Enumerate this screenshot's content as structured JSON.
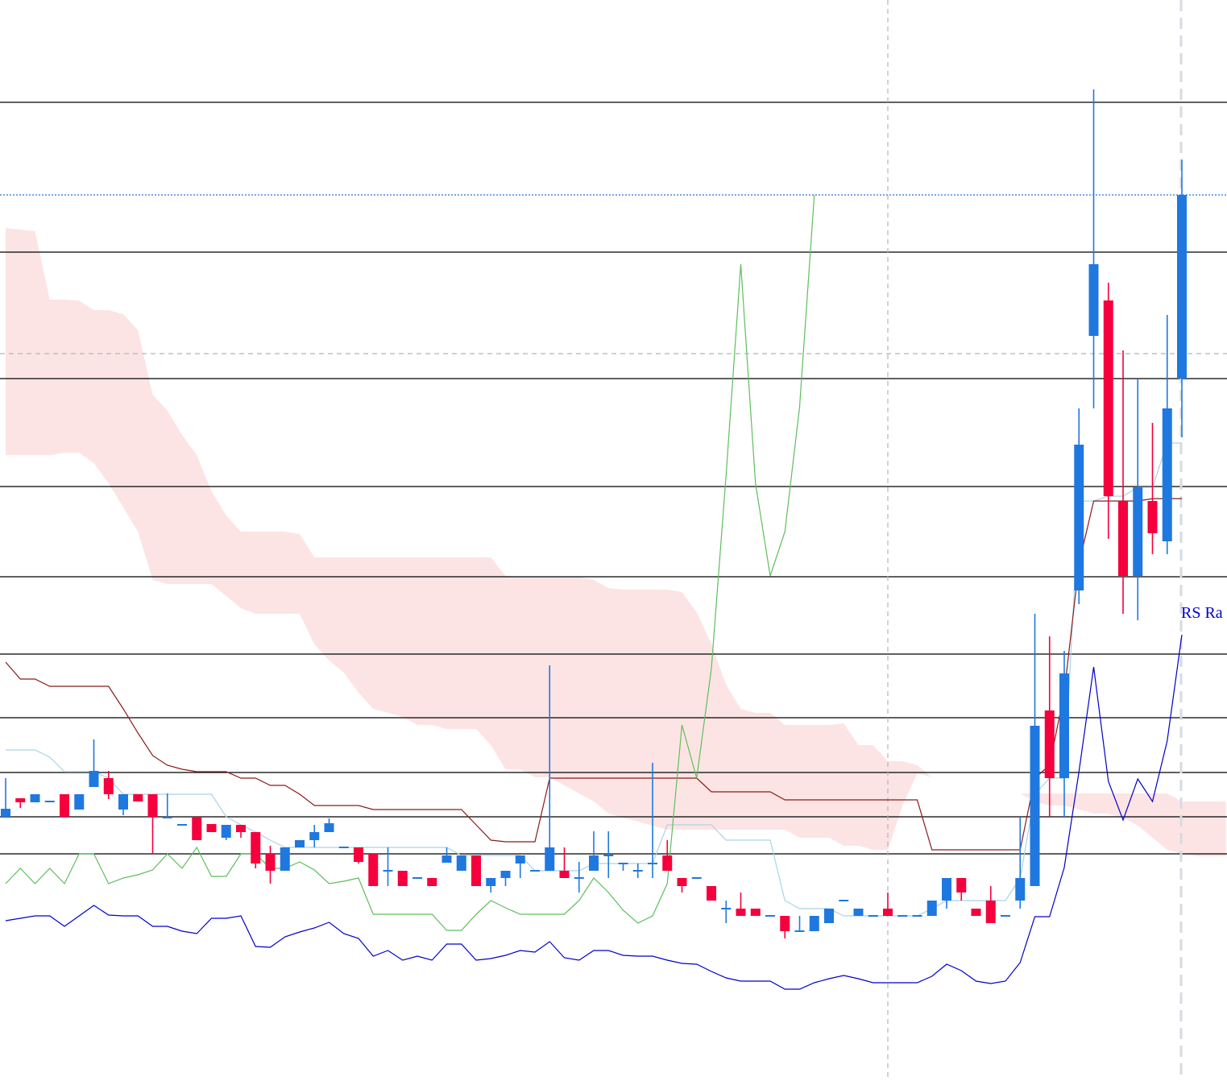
{
  "chart_data": {
    "type": "candlestick",
    "ylim": [
      0,
      1342
    ],
    "up_color": "#1f78e0",
    "down_color": "#f5003c",
    "categories": [
      null,
      null,
      null,
      null,
      null,
      null,
      null,
      null,
      null,
      null,
      null,
      null,
      null,
      null,
      null,
      null,
      null,
      null,
      null,
      null,
      null,
      null,
      null,
      null,
      null,
      null,
      null,
      null,
      null,
      null,
      null,
      null,
      null,
      null,
      null,
      null,
      null,
      null,
      null,
      null,
      null,
      null,
      null,
      null,
      null,
      null,
      null,
      null,
      null,
      null,
      null,
      null,
      null,
      null,
      null,
      null,
      null,
      null,
      null,
      null,
      null,
      null,
      null,
      null,
      null,
      null,
      null,
      null,
      null,
      null,
      null,
      null,
      null,
      null,
      null,
      null,
      null,
      null,
      null,
      null,
      null,
      null,
      null,
      null
    ],
    "open": [
      328,
      351,
      346,
      346,
      356,
      337,
      365,
      376,
      337,
      356,
      356,
      326,
      317,
      328,
      319,
      302,
      318,
      309,
      282,
      261,
      290,
      299,
      309,
      289,
      290,
      282,
      260,
      261,
      251,
      252,
      271,
      261,
      280,
      242,
      252,
      270,
      260,
      261,
      261,
      251,
      261,
      279,
      269,
      260,
      269,
      280,
      252,
      251,
      242,
      213,
      214,
      214,
      204,
      205,
      185,
      186,
      196,
      223,
      205,
      204,
      214,
      204,
      204,
      205,
      224,
      252,
      214,
      224,
      204,
      224,
      242,
      460,
      376,
      609,
      925,
      969,
      720,
      627,
      720,
      670,
      872,
      null,
      null,
      null
    ],
    "high": [
      376,
      351,
      356,
      348,
      356,
      356,
      424,
      385,
      356,
      356,
      356,
      357,
      319,
      328,
      319,
      318,
      318,
      309,
      292,
      290,
      299,
      318,
      326,
      291,
      290,
      282,
      290,
      261,
      253,
      252,
      290,
      280,
      280,
      252,
      261,
      280,
      262,
      516,
      290,
      272,
      310,
      310,
      271,
      270,
      395,
      299,
      252,
      253,
      242,
      224,
      234,
      214,
      206,
      205,
      205,
      205,
      214,
      225,
      214,
      206,
      234,
      206,
      206,
      224,
      252,
      252,
      214,
      242,
      206,
      328,
      580,
      552,
      534,
      835,
      1231,
      991,
      907,
      872,
      817,
      951,
      1144,
      null,
      null,
      null
    ],
    "low": [
      328,
      339,
      346,
      346,
      328,
      337,
      365,
      350,
      330,
      347,
      282,
      326,
      317,
      299,
      309,
      299,
      302,
      264,
      245,
      261,
      290,
      290,
      309,
      289,
      270,
      242,
      242,
      242,
      251,
      242,
      271,
      261,
      242,
      234,
      242,
      252,
      260,
      261,
      252,
      234,
      261,
      252,
      261,
      252,
      252,
      261,
      234,
      251,
      224,
      196,
      205,
      205,
      204,
      177,
      185,
      186,
      196,
      223,
      205,
      204,
      205,
      204,
      204,
      205,
      214,
      224,
      205,
      196,
      204,
      214,
      242,
      328,
      328,
      592,
      835,
      673,
      580,
      572,
      654,
      654,
      799,
      null,
      null,
      null
    ],
    "close": [
      338,
      346,
      356,
      348,
      328,
      356,
      385,
      356,
      356,
      347,
      328,
      328,
      319,
      299,
      309,
      318,
      309,
      270,
      261,
      290,
      299,
      309,
      320,
      291,
      272,
      242,
      262,
      242,
      253,
      242,
      280,
      280,
      242,
      252,
      261,
      280,
      262,
      290,
      252,
      253,
      280,
      281,
      271,
      262,
      271,
      261,
      242,
      253,
      224,
      215,
      205,
      205,
      206,
      186,
      187,
      205,
      214,
      225,
      214,
      206,
      205,
      206,
      206,
      224,
      252,
      234,
      205,
      196,
      206,
      252,
      441,
      376,
      506,
      790,
      1014,
      726,
      627,
      737,
      680,
      835,
      1100,
      null,
      null,
      null
    ],
    "cloud": {
      "color": "#fde4e4",
      "upper": [
        1059,
        1057,
        1055,
        970,
        970,
        969,
        957,
        957,
        952,
        932,
        852,
        832,
        802,
        777,
        732,
        702,
        682,
        682,
        682,
        682,
        679,
        650,
        650,
        650,
        650,
        650,
        650,
        650,
        650,
        650,
        650,
        650,
        650,
        650,
        627,
        626,
        626,
        626,
        626,
        626,
        622,
        612,
        610,
        610,
        610,
        610,
        607,
        582,
        542,
        492,
        462,
        457,
        457,
        442,
        442,
        442,
        442,
        444,
        417,
        417,
        397,
        397,
        392,
        377,
        null,
        null,
        null,
        null,
        null,
        357,
        357,
        357,
        357,
        357,
        357,
        357,
        357,
        357,
        357,
        357,
        347,
        347,
        347,
        347
      ],
      "lower": [
        777,
        777,
        777,
        777,
        780,
        780,
        767,
        742,
        712,
        682,
        622,
        617,
        617,
        617,
        617,
        602,
        587,
        580,
        580,
        580,
        580,
        542,
        522,
        507,
        482,
        462,
        457,
        452,
        442,
        442,
        437,
        437,
        437,
        417,
        387,
        387,
        377,
        377,
        367,
        357,
        347,
        332,
        327,
        322,
        317,
        312,
        312,
        312,
        312,
        312,
        312,
        312,
        312,
        312,
        302,
        302,
        302,
        292,
        292,
        287,
        287,
        342,
        382,
        377,
        null,
        null,
        null,
        null,
        null,
        357,
        347,
        342,
        342,
        337,
        332,
        332,
        327,
        317,
        302,
        287,
        282,
        279,
        279,
        279
      ]
    },
    "series": [
      {
        "color": "#a9d3e8",
        "values": [
          411,
          411,
          411,
          402,
          384,
          384,
          384,
          376,
          356,
          356,
          356,
          356,
          356,
          356,
          356,
          328,
          318,
          309,
          299,
          290,
          290,
          290,
          290,
          290,
          290,
          290,
          290,
          290,
          290,
          290,
          290,
          280,
          280,
          280,
          280,
          280,
          261,
          261,
          261,
          261,
          270,
          270,
          270,
          270,
          270,
          318,
          318,
          318,
          318,
          299,
          299,
          299,
          299,
          224,
          214,
          214,
          214,
          205,
          205,
          205,
          205,
          205,
          205,
          214,
          224,
          224,
          224,
          224,
          224,
          252,
          356,
          376,
          376,
          720,
          720,
          726,
          726,
          737,
          737,
          792,
          792,
          null,
          null,
          null
        ]
      },
      {
        "color": "#8b1a1a",
        "values": [
          520,
          499,
          499,
          490,
          490,
          490,
          490,
          490,
          462,
          432,
          404,
          392,
          387,
          384,
          384,
          384,
          376,
          376,
          367,
          367,
          356,
          342,
          342,
          342,
          342,
          337,
          337,
          337,
          337,
          337,
          337,
          337,
          318,
          299,
          297,
          297,
          297,
          376,
          376,
          376,
          376,
          376,
          376,
          376,
          376,
          376,
          376,
          376,
          359,
          359,
          359,
          359,
          359,
          349,
          349,
          349,
          349,
          349,
          349,
          349,
          349,
          349,
          349,
          287,
          287,
          287,
          287,
          287,
          287,
          287,
          376,
          392,
          482,
          642,
          720,
          720,
          720,
          720,
          723,
          723,
          723,
          null,
          null,
          null
        ]
      },
      {
        "color": "#5cbf5c",
        "values": [
          245,
          264,
          245,
          264,
          245,
          282,
          282,
          245,
          252,
          256,
          262,
          282,
          264,
          290,
          254,
          254,
          282,
          282,
          264,
          264,
          272,
          262,
          245,
          248,
          252,
          207,
          207,
          207,
          207,
          207,
          187,
          187,
          207,
          224,
          215,
          207,
          207,
          207,
          207,
          224,
          252,
          234,
          212,
          196,
          205,
          245,
          442,
          376,
          512,
          752,
          1014,
          742,
          627,
          682,
          837,
          1100,
          null,
          null,
          null,
          null,
          null,
          null,
          null,
          null,
          null,
          null,
          null,
          null,
          null,
          null,
          null,
          null,
          null,
          null,
          null,
          null,
          null,
          null,
          null,
          null,
          null,
          null,
          null,
          null
        ]
      },
      {
        "color": "#0000cc",
        "values": [
          199,
          202,
          205,
          205,
          192,
          205,
          218,
          206,
          205,
          205,
          192,
          192,
          186,
          183,
          202,
          202,
          205,
          167,
          166,
          179,
          185,
          190,
          197,
          183,
          177,
          155,
          162,
          150,
          155,
          150,
          170,
          170,
          150,
          152,
          156,
          162,
          160,
          173,
          153,
          150,
          162,
          162,
          156,
          155,
          155,
          150,
          146,
          145,
          136,
          128,
          124,
          124,
          124,
          114,
          114,
          122,
          127,
          131,
          127,
          122,
          122,
          122,
          122,
          130,
          145,
          137,
          124,
          121,
          124,
          147,
          204,
          204,
          265,
          384,
          514,
          372,
          324,
          375,
          347,
          422,
          554,
          null,
          null,
          null
        ]
      }
    ],
    "levels": {
      "color": "#000000",
      "values": [
        1215,
        1029,
        872,
        738,
        626,
        530,
        451,
        383,
        328,
        282
      ]
    },
    "price_line": {
      "color": "#1f78e0",
      "value": 1100
    },
    "crosshair": {
      "color": "#b4b4b4",
      "value": 903
    },
    "annotation": "RS Ra"
  }
}
